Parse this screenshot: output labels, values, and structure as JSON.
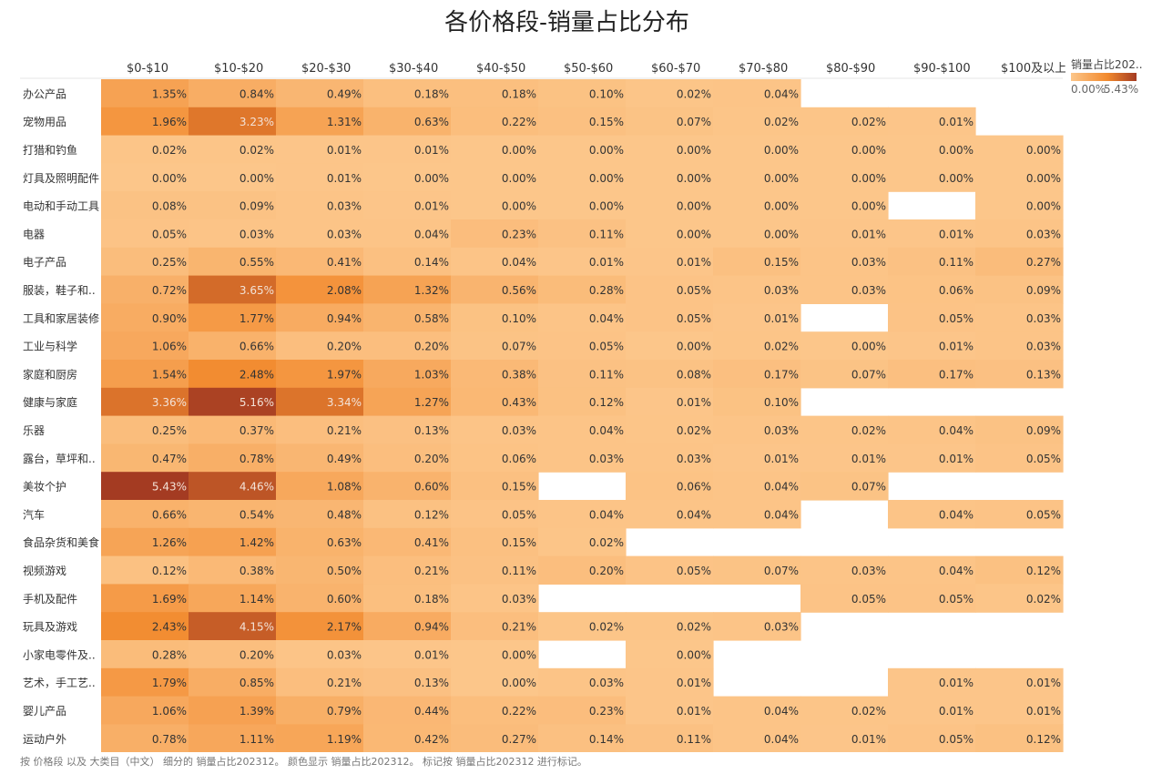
{
  "title": "各价格段-销量占比分布",
  "footnote": "按 价格段 以及 大类目（中文） 细分的 销量占比202312。 颜色显示 销量占比202312。 标记按 销量占比202312 进行标记。",
  "legend": {
    "title": "销量占比202..",
    "min_label": "0.00%",
    "max_label": "5.43%",
    "color_low": "#fcc68a",
    "color_mid": "#f28a2e",
    "color_high": "#a43b22"
  },
  "chart_data": {
    "type": "heatmap",
    "title": "各价格段-销量占比分布",
    "value_format": "percent",
    "value_range": [
      0,
      5.43
    ],
    "columns": [
      "$0-$10",
      "$10-$20",
      "$20-$30",
      "$30-$40",
      "$40-$50",
      "$50-$60",
      "$60-$70",
      "$70-$80",
      "$80-$90",
      "$90-$100",
      "$100及以上"
    ],
    "rows": [
      "办公产品",
      "宠物用品",
      "打猎和钓鱼",
      "灯具及照明配件",
      "电动和手动工具",
      "电器",
      "电子产品",
      "服装，鞋子和..",
      "工具和家居装修",
      "工业与科学",
      "家庭和厨房",
      "健康与家庭",
      "乐器",
      "露台，草坪和..",
      "美妆个护",
      "汽车",
      "食品杂货和美食",
      "视频游戏",
      "手机及配件",
      "玩具及游戏",
      "小家电零件及..",
      "艺术，手工艺..",
      "婴儿产品",
      "运动户外"
    ],
    "values": [
      [
        1.35,
        0.84,
        0.49,
        0.18,
        0.18,
        0.1,
        0.02,
        0.04,
        null,
        null,
        null
      ],
      [
        1.96,
        3.23,
        1.31,
        0.63,
        0.22,
        0.15,
        0.07,
        0.02,
        0.02,
        0.01,
        null
      ],
      [
        0.02,
        0.02,
        0.01,
        0.01,
        0.0,
        0.0,
        0.0,
        0.0,
        0.0,
        0.0,
        0.0
      ],
      [
        0.0,
        0.0,
        0.01,
        0.0,
        0.0,
        0.0,
        0.0,
        0.0,
        0.0,
        0.0,
        0.0
      ],
      [
        0.08,
        0.09,
        0.03,
        0.01,
        0.0,
        0.0,
        0.0,
        0.0,
        0.0,
        null,
        0.0
      ],
      [
        0.05,
        0.03,
        0.03,
        0.04,
        0.23,
        0.11,
        0.0,
        0.0,
        0.01,
        0.01,
        0.03
      ],
      [
        0.25,
        0.55,
        0.41,
        0.14,
        0.04,
        0.01,
        0.01,
        0.15,
        0.03,
        0.11,
        0.27
      ],
      [
        0.72,
        3.65,
        2.08,
        1.32,
        0.56,
        0.28,
        0.05,
        0.03,
        0.03,
        0.06,
        0.09
      ],
      [
        0.9,
        1.77,
        0.94,
        0.58,
        0.1,
        0.04,
        0.05,
        0.01,
        null,
        0.05,
        0.03
      ],
      [
        1.06,
        0.66,
        0.2,
        0.2,
        0.07,
        0.05,
        0.0,
        0.02,
        0.0,
        0.01,
        0.03
      ],
      [
        1.54,
        2.48,
        1.97,
        1.03,
        0.38,
        0.11,
        0.08,
        0.17,
        0.07,
        0.17,
        0.13
      ],
      [
        3.36,
        5.16,
        3.34,
        1.27,
        0.43,
        0.12,
        0.01,
        0.1,
        null,
        null,
        null
      ],
      [
        0.25,
        0.37,
        0.21,
        0.13,
        0.03,
        0.04,
        0.02,
        0.03,
        0.02,
        0.04,
        0.09
      ],
      [
        0.47,
        0.78,
        0.49,
        0.2,
        0.06,
        0.03,
        0.03,
        0.01,
        0.01,
        0.01,
        0.05
      ],
      [
        5.43,
        4.46,
        1.08,
        0.6,
        0.15,
        null,
        0.06,
        0.04,
        0.07,
        null,
        null
      ],
      [
        0.66,
        0.54,
        0.48,
        0.12,
        0.05,
        0.04,
        0.04,
        0.04,
        null,
        0.04,
        0.05
      ],
      [
        1.26,
        1.42,
        0.63,
        0.41,
        0.15,
        0.02,
        null,
        null,
        null,
        null,
        null
      ],
      [
        0.12,
        0.38,
        0.5,
        0.21,
        0.11,
        0.2,
        0.05,
        0.07,
        0.03,
        0.04,
        0.12
      ],
      [
        1.69,
        1.14,
        0.6,
        0.18,
        0.03,
        null,
        null,
        null,
        0.05,
        0.05,
        0.02
      ],
      [
        2.43,
        4.15,
        2.17,
        0.94,
        0.21,
        0.02,
        0.02,
        0.03,
        null,
        null,
        null
      ],
      [
        0.28,
        0.2,
        0.03,
        0.01,
        0.0,
        null,
        0.0,
        null,
        null,
        null,
        null
      ],
      [
        1.79,
        0.85,
        0.21,
        0.13,
        0.0,
        0.03,
        0.01,
        null,
        null,
        0.01,
        0.01
      ],
      [
        1.06,
        1.39,
        0.79,
        0.44,
        0.22,
        0.23,
        0.01,
        0.04,
        0.02,
        0.01,
        0.01
      ],
      [
        0.78,
        1.11,
        1.19,
        0.42,
        0.27,
        0.14,
        0.11,
        0.04,
        0.01,
        0.05,
        0.12
      ]
    ]
  }
}
